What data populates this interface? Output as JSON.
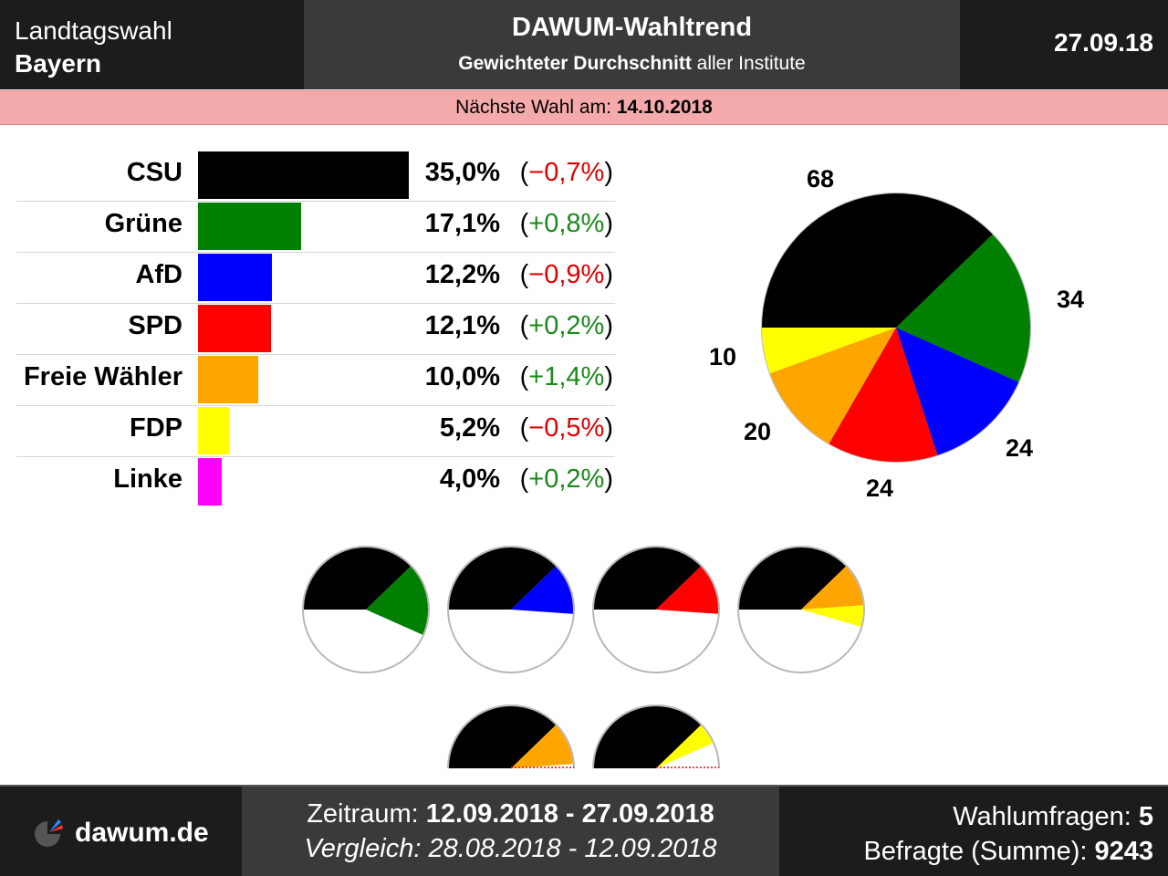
{
  "header": {
    "election_type": "Landtagswahl",
    "region": "Bayern",
    "title": "DAWUM-Wahltrend",
    "subtitle_bold": "Gewichteter Durchschnitt",
    "subtitle_rest": " aller Institute",
    "date": "27.09.18"
  },
  "next_election": {
    "label": "Nächste Wahl am: ",
    "date": "14.10.2018"
  },
  "colors": {
    "positive": "#1a8a1a",
    "negative": "#e00000"
  },
  "chart_data": [
    {
      "type": "bar",
      "categories": [
        "CSU",
        "Grüne",
        "AfD",
        "SPD",
        "Freie Wähler",
        "FDP",
        "Linke"
      ],
      "values": [
        35.0,
        17.1,
        12.2,
        12.1,
        10.0,
        5.2,
        4.0
      ],
      "value_labels": [
        "35,0%",
        "17,1%",
        "12,2%",
        "12,1%",
        "10,0%",
        "5,2%",
        "4,0%"
      ],
      "changes": [
        -0.7,
        0.8,
        -0.9,
        0.2,
        1.4,
        -0.5,
        0.2
      ],
      "change_labels": [
        "(−0,7%)",
        "(+0,8%)",
        "(−0,9%)",
        "(+0,2%)",
        "(+1,4%)",
        "(−0,5%)",
        "(+0,2%)"
      ],
      "colors": [
        "#000000",
        "#008000",
        "#0000ff",
        "#ff0000",
        "#ffa500",
        "#ffff00",
        "#ff00ff"
      ]
    },
    {
      "type": "pie",
      "categories": [
        "CSU",
        "Grüne",
        "AfD",
        "SPD",
        "Freie Wähler",
        "FDP"
      ],
      "values": [
        68,
        34,
        24,
        24,
        20,
        10
      ],
      "labels": [
        "68",
        "34",
        "24",
        "24",
        "20",
        "10"
      ],
      "colors": [
        "#000000",
        "#008000",
        "#0000ff",
        "#ff0000",
        "#ffa500",
        "#ffff00"
      ]
    },
    {
      "type": "pie",
      "description_of_marks": "coalition half-circle gauges",
      "coalitions": [
        {
          "parties": [
            "CSU",
            "Grüne"
          ],
          "values": [
            68,
            34
          ],
          "colors": [
            "#000000",
            "#008000"
          ]
        },
        {
          "parties": [
            "CSU",
            "AfD"
          ],
          "values": [
            68,
            24
          ],
          "colors": [
            "#000000",
            "#0000ff"
          ]
        },
        {
          "parties": [
            "CSU",
            "SPD"
          ],
          "values": [
            68,
            24
          ],
          "colors": [
            "#000000",
            "#ff0000"
          ]
        },
        {
          "parties": [
            "CSU",
            "Freie Wähler",
            "FDP"
          ],
          "values": [
            68,
            20,
            10
          ],
          "colors": [
            "#000000",
            "#ffa500",
            "#ffff00"
          ]
        },
        {
          "parties": [
            "CSU",
            "Freie Wähler"
          ],
          "values": [
            68,
            20
          ],
          "colors": [
            "#000000",
            "#ffa500"
          ]
        },
        {
          "parties": [
            "CSU",
            "FDP"
          ],
          "values": [
            68,
            10
          ],
          "colors": [
            "#000000",
            "#ffff00"
          ]
        }
      ],
      "total_seats": 180
    }
  ],
  "footer": {
    "logo_text": "dawum.de",
    "period_label": "Zeitraum: ",
    "period": "12.09.2018 - 27.09.2018",
    "compare_label": "Vergleich: ",
    "compare": "28.08.2018 - 12.09.2018",
    "polls_label": "Wahlumfragen: ",
    "polls": "5",
    "respondents_label": "Befragte (Summe): ",
    "respondents": "9243"
  }
}
